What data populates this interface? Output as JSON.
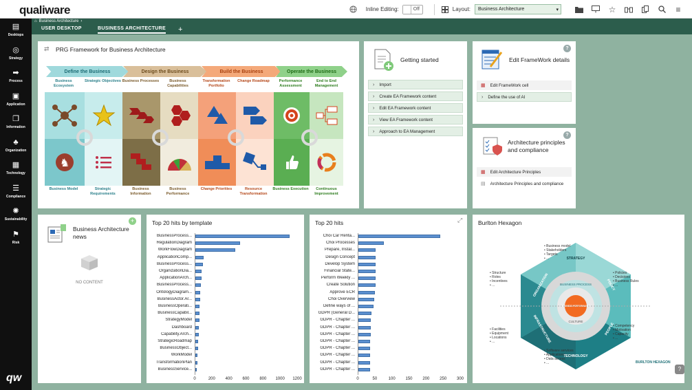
{
  "header": {
    "logo": "qualiware",
    "inline_editing_label": "Inline Editing:",
    "inline_editing_value": "Off",
    "layout_label": "Layout:",
    "layout_value": "Business Architecture"
  },
  "breadcrumb": "Business Architecture",
  "tabs": [
    {
      "label": "USER DESKTOP",
      "active": false
    },
    {
      "label": "BUSINESS ARCHITECTURE",
      "active": true
    }
  ],
  "tab_add": "+",
  "nav": [
    {
      "label": "Desktops",
      "icon": "desktops-icon"
    },
    {
      "label": "Strategy",
      "icon": "strategy-icon"
    },
    {
      "label": "Process",
      "icon": "process-icon"
    },
    {
      "label": "Application",
      "icon": "application-icon"
    },
    {
      "label": "Information",
      "icon": "information-icon"
    },
    {
      "label": "Organization",
      "icon": "organization-icon"
    },
    {
      "label": "Technology",
      "icon": "technology-icon"
    },
    {
      "label": "Compliance",
      "icon": "compliance-icon"
    },
    {
      "label": "Sustainability",
      "icon": "sustainability-icon"
    },
    {
      "label": "Risk",
      "icon": "risk-icon"
    }
  ],
  "nav_logo": "qw",
  "framework": {
    "title": "PRG Framework for Business Architecture",
    "bands": [
      "Define the Business",
      "Design the Business",
      "Build the Business",
      "Operate the Business"
    ],
    "band_colors": [
      "#9fd9dc",
      "#d9bf9a",
      "#f4a97a",
      "#8fd18a"
    ],
    "top_caps": [
      {
        "label": "Business Ecosystem",
        "color": "#2a7f8a"
      },
      {
        "label": "Strategic Objectives",
        "color": "#2a7f8a"
      },
      {
        "label": "Business Processes",
        "color": "#7a5a2a"
      },
      {
        "label": "Business Capabilities",
        "color": "#7a5a2a"
      },
      {
        "label": "Transformation Portfolio",
        "color": "#b5481a"
      },
      {
        "label": "Change Roadmap",
        "color": "#b5481a"
      },
      {
        "label": "Performance Assessment",
        "color": "#2e7d1f"
      },
      {
        "label": "End to End Management",
        "color": "#2e7d1f"
      }
    ],
    "bottom_caps": [
      {
        "label": "Business Model",
        "color": "#2a7f8a"
      },
      {
        "label": "Strategic Requirements",
        "color": "#2a7f8a"
      },
      {
        "label": "Business Information",
        "color": "#7a5a2a"
      },
      {
        "label": "Business Performance",
        "color": "#7a5a2a"
      },
      {
        "label": "Change Priorities",
        "color": "#b5481a"
      },
      {
        "label": "Resource Transformation",
        "color": "#b5481a"
      },
      {
        "label": "Business Execution",
        "color": "#2e7d1f"
      },
      {
        "label": "Continuous Improvement",
        "color": "#2e7d1f"
      }
    ]
  },
  "getting_started": {
    "title": "Getting started",
    "items": [
      "Import",
      "Create EA Framework content",
      "Edit EA Framework content",
      "View EA Framework content",
      "Approach to EA Management"
    ]
  },
  "framework_details": {
    "title": "Edit FrameWork details",
    "items": [
      "Edit FrameWork cell",
      "Define the use of AI"
    ]
  },
  "principles": {
    "title_line1": "Architecture principles",
    "title_line2": "and compliance",
    "items": [
      "Edit Architecture Principles",
      "Architecture Principles and compliance"
    ]
  },
  "news": {
    "title_line1": "Business Architecture",
    "title_line2": "news",
    "empty": "NO CONTENT"
  },
  "chart_template": {
    "title": "Top 20 hits by template"
  },
  "chart_hits": {
    "title": "Top 20 hits"
  },
  "hexagon": {
    "title": "Burlton Hexagon",
    "left_top": [
      "Structure",
      "Roles",
      "Incentives"
    ],
    "left_bottom": [
      "Facilities",
      "Equipment",
      "Locations"
    ],
    "top": [
      "Business model",
      "Stakeholders",
      "Targets"
    ],
    "right_top": [
      "Policies",
      "Decisions",
      "Business Rules"
    ],
    "right_bottom": [
      "Competency",
      "Motivation",
      "Capacity"
    ],
    "bottom": [
      "Software services",
      "Applications",
      "Data access"
    ],
    "segments": [
      "STRATEGY",
      "POLICY",
      "PEOPLE",
      "TECHNOLOGY",
      "INFRASTRUCTURE",
      "ORGANIZATION"
    ],
    "ring": [
      "BUSINESS PROCESS",
      "CULTURE"
    ],
    "center": "BUSINESS PERFORMANCE",
    "brand": "BURLTON HEXAGON"
  },
  "chart_data": [
    {
      "type": "bar",
      "title": "Top 20 hits by template",
      "orientation": "horizontal",
      "categories": [
        "BusinessProcess...",
        "RegulationDiagram",
        "WorkFlowDiagram",
        "ApplicationComp...",
        "BusinessProcess...",
        "OrganizationDia...",
        "ApplicationArch...",
        "BusinessProcess...",
        "OntologyDiagram...",
        "BusinessActor.Ar...",
        "BusinessOperati...",
        "BusinessCapabil...",
        "StrategyModel",
        "Dashboard",
        "Capability.Arch...",
        "StrategicRoadmap",
        "BusinessObject...",
        "WorkModel",
        "TransformationPlan",
        "BusinessService..."
      ],
      "values": [
        1100,
        520,
        470,
        95,
        85,
        75,
        70,
        65,
        60,
        55,
        50,
        50,
        45,
        40,
        40,
        35,
        30,
        28,
        25,
        20
      ],
      "xlim": [
        0,
        1200
      ],
      "xticks": [
        0,
        200,
        400,
        600,
        800,
        1000,
        1200
      ],
      "color": "#5b8fcf"
    },
    {
      "type": "bar",
      "title": "Top 20 hits",
      "orientation": "horizontal",
      "categories": [
        "Choi Car Renta...",
        "Choi Processes",
        "Prepare, Instal...",
        "Design Concept",
        "Develop System",
        "Financial State...",
        "Perform Weekly ...",
        "Create Solution",
        "Approve ECR",
        "Choi Overview",
        "Define ways of ...",
        "GDPR (General D...",
        "GDPR - Chapter ...",
        "GDPR - Chapter ...",
        "GDPR - Chapter ...",
        "GDPR - Chapter ...",
        "GDPR - Chapter ...",
        "GDPR - Chapter ...",
        "GDPR - Chapter ...",
        "GDPR - Chapter ..."
      ],
      "values": [
        240,
        75,
        50,
        50,
        50,
        50,
        50,
        50,
        48,
        47,
        45,
        38,
        37,
        36,
        36,
        35,
        35,
        35,
        35,
        35
      ],
      "xlim": [
        0,
        300
      ],
      "xticks": [
        0,
        50,
        100,
        150,
        200,
        250,
        300
      ],
      "color": "#5b8fcf"
    }
  ]
}
